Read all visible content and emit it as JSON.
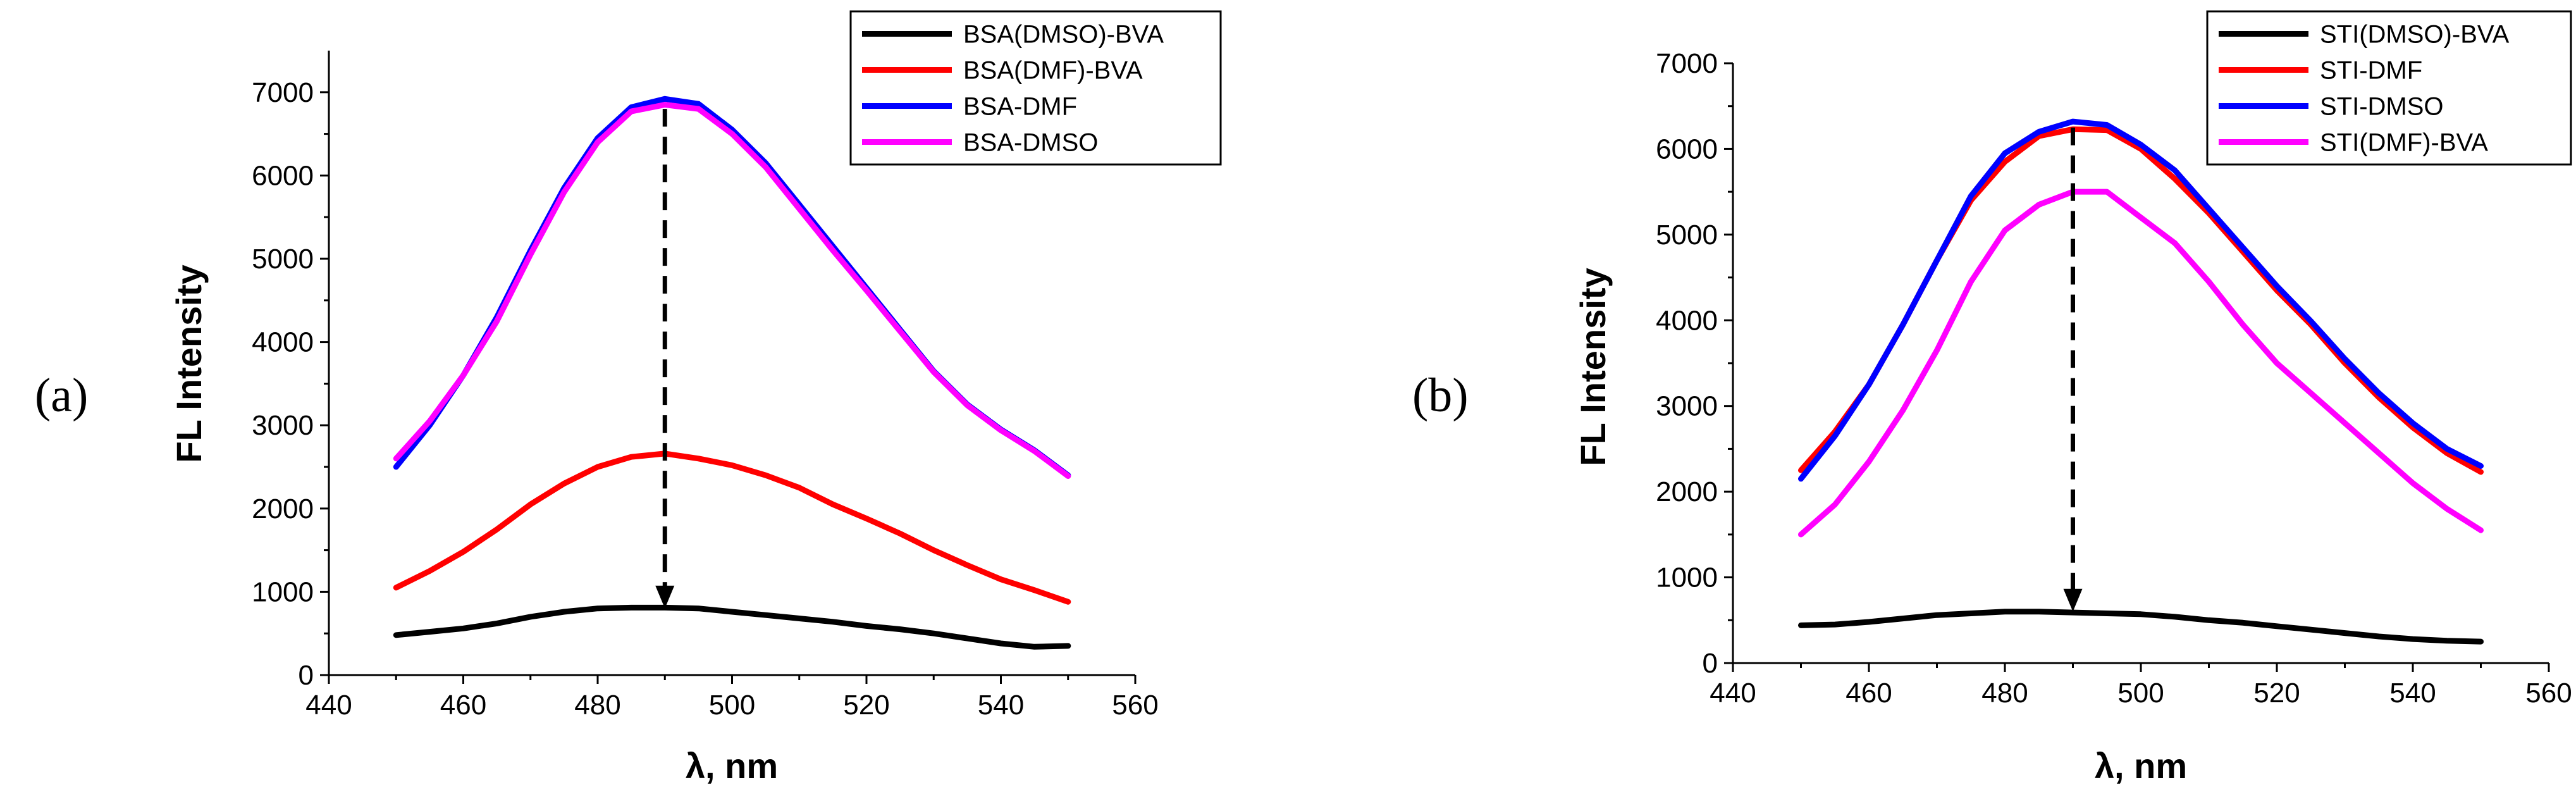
{
  "chart_data": [
    {
      "type": "line",
      "panel_label": "(a)",
      "xlabel": "λ, nm",
      "ylabel": "FL Intensity",
      "xlim": [
        440,
        560
      ],
      "ylim": [
        0,
        7500
      ],
      "xticks": [
        440,
        460,
        480,
        500,
        520,
        540,
        560
      ],
      "yticks": [
        0,
        1000,
        2000,
        3000,
        4000,
        5000,
        6000,
        7000
      ],
      "legend_position": "top-right",
      "series": [
        {
          "name": "BSA(DMSO)-BVA",
          "color": "#000000",
          "x": [
            450,
            455,
            460,
            465,
            470,
            475,
            480,
            485,
            490,
            495,
            500,
            505,
            510,
            515,
            520,
            525,
            530,
            535,
            540,
            545,
            550
          ],
          "y": [
            480,
            520,
            560,
            620,
            700,
            760,
            800,
            810,
            810,
            800,
            760,
            720,
            680,
            640,
            590,
            550,
            500,
            440,
            380,
            340,
            350
          ]
        },
        {
          "name": "BSA(DMF)-BVA",
          "color": "#ff0000",
          "x": [
            450,
            455,
            460,
            465,
            470,
            475,
            480,
            485,
            490,
            495,
            500,
            505,
            510,
            515,
            520,
            525,
            530,
            535,
            540,
            545,
            550
          ],
          "y": [
            1050,
            1250,
            1480,
            1750,
            2050,
            2300,
            2500,
            2620,
            2660,
            2600,
            2520,
            2400,
            2250,
            2050,
            1880,
            1700,
            1500,
            1320,
            1150,
            1020,
            880
          ]
        },
        {
          "name": "BSA-DMF",
          "color": "#0000ff",
          "x": [
            450,
            455,
            460,
            465,
            470,
            475,
            480,
            485,
            490,
            495,
            500,
            505,
            510,
            515,
            520,
            525,
            530,
            535,
            540,
            545,
            550
          ],
          "y": [
            2500,
            3000,
            3600,
            4300,
            5100,
            5850,
            6450,
            6820,
            6920,
            6860,
            6550,
            6150,
            5650,
            5150,
            4650,
            4150,
            3650,
            3250,
            2950,
            2700,
            2400
          ]
        },
        {
          "name": "BSA-DMSO",
          "color": "#ff00ff",
          "x": [
            450,
            455,
            460,
            465,
            470,
            475,
            480,
            485,
            490,
            495,
            500,
            505,
            510,
            515,
            520,
            525,
            530,
            535,
            540,
            545,
            550
          ],
          "y": [
            2600,
            3050,
            3600,
            4250,
            5050,
            5800,
            6400,
            6770,
            6850,
            6800,
            6500,
            6100,
            5600,
            5100,
            4620,
            4130,
            3640,
            3240,
            2940,
            2690,
            2390
          ]
        }
      ],
      "arrow": {
        "x": 490,
        "y_from": 6800,
        "y_to": 800
      }
    },
    {
      "type": "line",
      "panel_label": "(b)",
      "xlabel": "λ, nm",
      "ylabel": "FL Intensity",
      "xlim": [
        440,
        560
      ],
      "ylim": [
        0,
        7000
      ],
      "xticks": [
        440,
        460,
        480,
        500,
        520,
        540,
        560
      ],
      "yticks": [
        0,
        1000,
        2000,
        3000,
        4000,
        5000,
        6000,
        7000
      ],
      "legend_position": "top-right",
      "series": [
        {
          "name": "STI(DMSO)-BVA",
          "color": "#000000",
          "x": [
            450,
            455,
            460,
            465,
            470,
            475,
            480,
            485,
            490,
            495,
            500,
            505,
            510,
            515,
            520,
            525,
            530,
            535,
            540,
            545,
            550
          ],
          "y": [
            440,
            450,
            480,
            520,
            560,
            580,
            600,
            600,
            590,
            580,
            570,
            540,
            500,
            470,
            430,
            390,
            350,
            310,
            280,
            260,
            250
          ]
        },
        {
          "name": "STI-DMF",
          "color": "#ff0000",
          "x": [
            450,
            455,
            460,
            465,
            470,
            475,
            480,
            485,
            490,
            495,
            500,
            505,
            510,
            515,
            520,
            525,
            530,
            535,
            540,
            545,
            550
          ],
          "y": [
            2250,
            2700,
            3250,
            3950,
            4700,
            5400,
            5850,
            6150,
            6230,
            6220,
            6000,
            5650,
            5250,
            4800,
            4350,
            3950,
            3500,
            3100,
            2750,
            2450,
            2230
          ]
        },
        {
          "name": "STI-DMSO",
          "color": "#0000ff",
          "x": [
            450,
            455,
            460,
            465,
            470,
            475,
            480,
            485,
            490,
            495,
            500,
            505,
            510,
            515,
            520,
            525,
            530,
            535,
            540,
            545,
            550
          ],
          "y": [
            2150,
            2650,
            3250,
            3950,
            4700,
            5450,
            5950,
            6200,
            6320,
            6280,
            6050,
            5750,
            5300,
            4850,
            4400,
            3990,
            3550,
            3150,
            2800,
            2500,
            2300
          ]
        },
        {
          "name": "STI(DMF)-BVA",
          "color": "#ff00ff",
          "x": [
            450,
            455,
            460,
            465,
            470,
            475,
            480,
            485,
            490,
            495,
            500,
            505,
            510,
            515,
            520,
            525,
            530,
            535,
            540,
            545,
            550
          ],
          "y": [
            1500,
            1850,
            2350,
            2950,
            3650,
            4450,
            5050,
            5350,
            5500,
            5500,
            5200,
            4900,
            4450,
            3950,
            3500,
            3150,
            2800,
            2450,
            2100,
            1800,
            1550
          ]
        }
      ],
      "arrow": {
        "x": 490,
        "y_from": 6250,
        "y_to": 600
      }
    }
  ]
}
